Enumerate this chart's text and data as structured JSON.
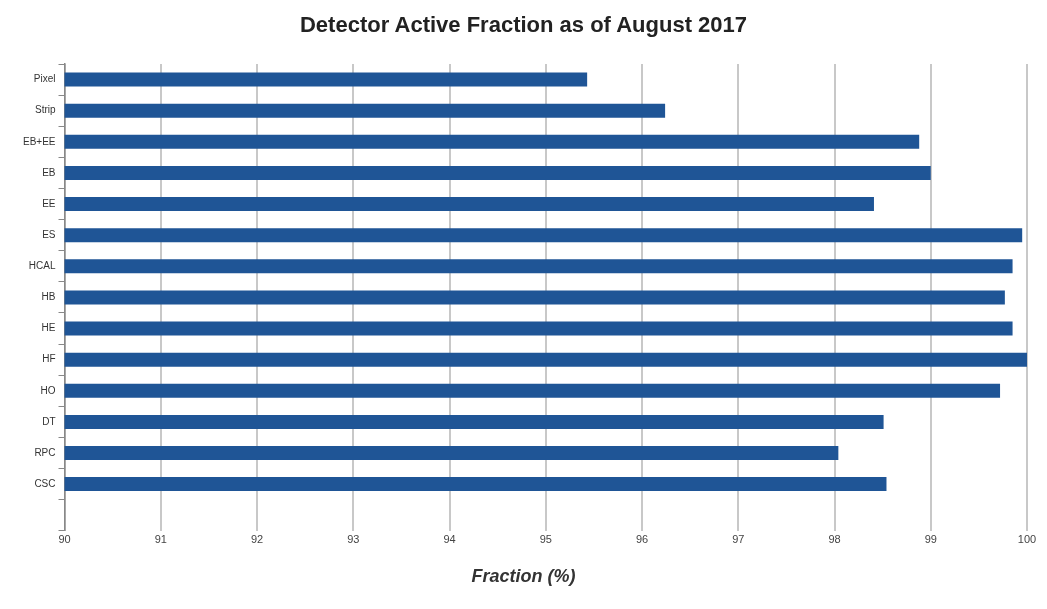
{
  "chart_data": {
    "type": "bar",
    "orientation": "horizontal",
    "title": "Detector Active Fraction as of August 2017",
    "xlabel": "Fraction (%)",
    "categories": [
      "Pixel",
      "Strip",
      "EB+EE",
      "EB",
      "EE",
      "ES",
      "HCAL",
      "HB",
      "HE",
      "HF",
      "HO",
      "DT",
      "RPC",
      "CSC",
      null
    ],
    "values": [
      95.43,
      96.24,
      98.88,
      99.0,
      98.41,
      99.95,
      99.85,
      99.77,
      99.85,
      100,
      99.72,
      98.51,
      98.04,
      98.54,
      null
    ],
    "color": "#1f5596",
    "xlim": [
      90,
      100
    ],
    "xticks": [
      90,
      91,
      92,
      93,
      94,
      95,
      96,
      97,
      98,
      99,
      100
    ],
    "grid": "x",
    "legend": false
  }
}
